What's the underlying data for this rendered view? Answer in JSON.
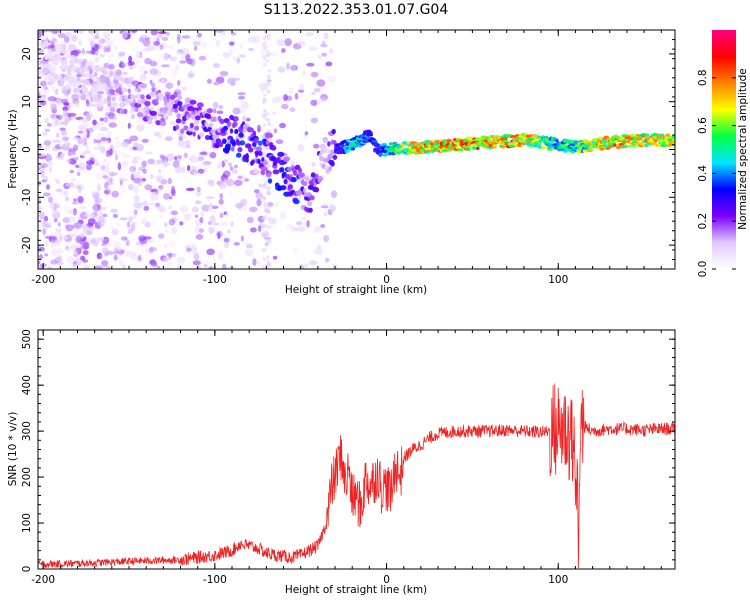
{
  "figure": {
    "title": "S113.2022.353.01.07.G04"
  },
  "chart_data": [
    {
      "type": "heatmap",
      "id": "spectrogram",
      "xlabel": "Height of straight line (km)",
      "ylabel": "Frequency (Hz)",
      "xlim": [
        -203,
        168
      ],
      "ylim": [
        -25,
        25
      ],
      "xticks": [
        -200,
        -100,
        0,
        100
      ],
      "yticks": [
        -20,
        -10,
        0,
        10,
        20
      ],
      "colorbar": {
        "label": "Normalized spectral amplitude",
        "range": [
          0,
          1
        ],
        "ticks": [
          0.0,
          0.2,
          0.4,
          0.6,
          0.8
        ],
        "colors": [
          "#ffffff",
          "#e0c8ff",
          "#7a00ff",
          "#0000ff",
          "#00e5ff",
          "#00ff40",
          "#ffff00",
          "#ff8000",
          "#ff0000",
          "#ff0080"
        ]
      },
      "ridge": {
        "x": [
          -200,
          -180,
          -160,
          -140,
          -120,
          -100,
          -90,
          -80,
          -70,
          -60,
          -50,
          -45,
          -40,
          -35,
          -30,
          -20,
          -10,
          -5,
          0,
          20,
          40,
          60,
          80,
          100,
          110,
          130,
          150,
          168
        ],
        "y": [
          19,
          16,
          12,
          10,
          7,
          5,
          3,
          1,
          -2,
          -5,
          -8,
          -10,
          -5,
          -1,
          0,
          1,
          3,
          0,
          0,
          0.5,
          1,
          1.5,
          2,
          1,
          0.5,
          1.5,
          2,
          2
        ],
        "amplitude": [
          0.1,
          0.12,
          0.15,
          0.2,
          0.25,
          0.3,
          0.32,
          0.35,
          0.35,
          0.35,
          0.33,
          0.3,
          0.25,
          0.2,
          0.3,
          0.5,
          0.4,
          0.35,
          0.55,
          0.8,
          0.85,
          0.85,
          0.8,
          0.5,
          0.6,
          0.8,
          0.75,
          0.75
        ]
      }
    },
    {
      "type": "line",
      "id": "snr",
      "xlabel": "Height of straight line (km)",
      "ylabel": "SNR (10 * v/v)",
      "xlim": [
        -203,
        168
      ],
      "ylim": [
        0,
        520
      ],
      "xticks": [
        -200,
        -100,
        0,
        100
      ],
      "yticks": [
        0,
        100,
        200,
        300,
        400,
        500
      ],
      "color": "#ee2222",
      "series": [
        {
          "x": [
            -203,
            -180,
            -160,
            -140,
            -120,
            -110,
            -100,
            -90,
            -85,
            -80,
            -75,
            -70,
            -65,
            -60,
            -55,
            -50,
            -45,
            -40,
            -35,
            -32,
            -30,
            -28,
            -26,
            -24,
            -22,
            -20,
            -18,
            -15,
            -12,
            -10,
            -8,
            -5,
            -3,
            0,
            3,
            5,
            8,
            10,
            15,
            20,
            25,
            30,
            40,
            50,
            60,
            70,
            80,
            90,
            95,
            100,
            103,
            106,
            108,
            110,
            112,
            113,
            115,
            120,
            130,
            140,
            150,
            160,
            168
          ],
          "y": [
            10,
            12,
            15,
            18,
            20,
            25,
            30,
            40,
            55,
            50,
            45,
            35,
            30,
            28,
            25,
            30,
            40,
            50,
            100,
            180,
            200,
            230,
            250,
            180,
            220,
            150,
            160,
            130,
            200,
            180,
            190,
            210,
            175,
            180,
            160,
            230,
            200,
            240,
            260,
            270,
            285,
            295,
            300,
            300,
            300,
            302,
            300,
            298,
            300,
            305,
            310,
            290,
            300,
            230,
            60,
            320,
            310,
            300,
            305,
            305,
            302,
            305,
            305
          ],
          "noise_amplitude": 14
        }
      ]
    }
  ]
}
